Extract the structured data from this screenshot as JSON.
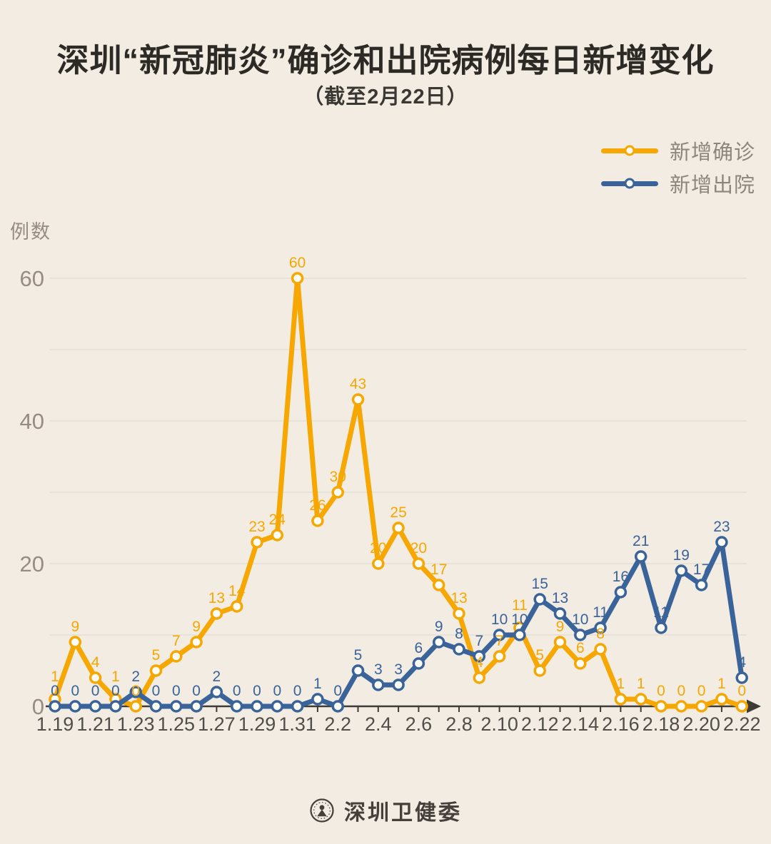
{
  "title": "深圳“新冠肺炎”确诊和出院病例每日新增变化",
  "subtitle": "（截至2月22日）",
  "y_axis_label": "例数",
  "legend": [
    {
      "label": "新增确诊",
      "color": "#F6A701"
    },
    {
      "label": "新增出院",
      "color": "#3A639A"
    }
  ],
  "footer": {
    "source_name": "深圳卫健委"
  },
  "colors": {
    "background": "#F2ECE3",
    "confirmed": "#F6A701",
    "discharged": "#3A639A",
    "grid": "#E3DCD1",
    "axis": "#3E3B37",
    "x_tick_label": "#514E48",
    "y_tick_label": "#958D83",
    "title": "#2D2A26",
    "legend_text": "#8C867D",
    "footer_text": "#45403A",
    "marker_fill": "#FFFDF8"
  },
  "chart_data": {
    "type": "line",
    "title": "深圳“新冠肺炎”确诊和出院病例每日新增变化（截至2月22日）",
    "xlabel": "",
    "ylabel": "例数",
    "x": [
      "1.19",
      "1.20",
      "1.21",
      "1.22",
      "1.23",
      "1.24",
      "1.25",
      "1.26",
      "1.27",
      "1.28",
      "1.29",
      "1.30",
      "1.31",
      "2.1",
      "2.2",
      "2.3",
      "2.4",
      "2.5",
      "2.6",
      "2.7",
      "2.8",
      "2.9",
      "2.10",
      "2.11",
      "2.12",
      "2.13",
      "2.14",
      "2.15",
      "2.16",
      "2.17",
      "2.18",
      "2.19",
      "2.20",
      "2.21",
      "2.22"
    ],
    "series": [
      {
        "name": "新增确诊",
        "color": "#F6A701",
        "values": [
          1,
          9,
          4,
          1,
          0,
          5,
          7,
          9,
          13,
          14,
          23,
          24,
          60,
          26,
          30,
          43,
          20,
          25,
          20,
          17,
          13,
          4,
          7,
          11,
          5,
          9,
          6,
          8,
          1,
          1,
          0,
          0,
          0,
          1,
          0
        ]
      },
      {
        "name": "新增出院",
        "color": "#3A639A",
        "values": [
          0,
          0,
          0,
          0,
          2,
          0,
          0,
          0,
          2,
          0,
          0,
          0,
          0,
          1,
          0,
          5,
          3,
          3,
          6,
          9,
          8,
          7,
          10,
          10,
          15,
          13,
          10,
          11,
          16,
          21,
          11,
          19,
          17,
          23,
          4
        ]
      }
    ],
    "ylim": [
      0,
      60
    ],
    "yticks": [
      0,
      20,
      40,
      60
    ],
    "grid": true,
    "grid_interval": 10,
    "xtick_labels": [
      "1.19",
      "1.21",
      "1.23",
      "1.25",
      "1.27",
      "1.29",
      "1.31",
      "2.2",
      "2.4",
      "2.6",
      "2.8",
      "2.10",
      "2.12",
      "2.14",
      "2.16",
      "2.18",
      "2.20",
      "2.22"
    ],
    "xtick_every": 2,
    "point_labels": true,
    "legend_position": "top-right"
  }
}
